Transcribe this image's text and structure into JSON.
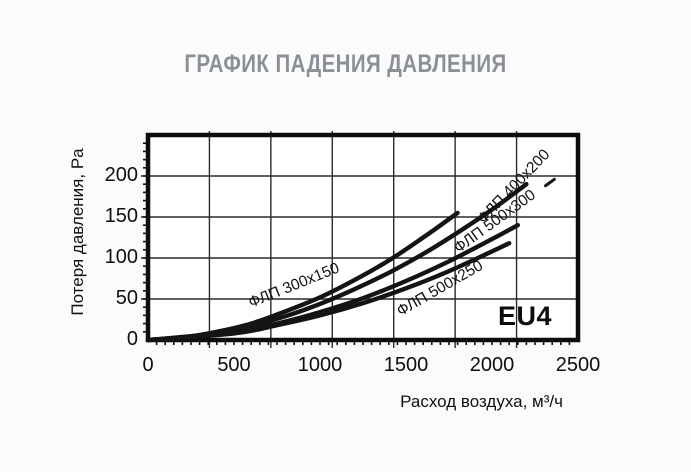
{
  "chart_data": {
    "type": "line",
    "title": "ГРАФИК ПАДЕНИЯ ДАВЛЕНИЯ",
    "xlabel": "Расход воздуха, м³/ч",
    "ylabel": "Потеря давления, Pa",
    "xlim": [
      0,
      2500
    ],
    "ylim": [
      0,
      250
    ],
    "x_ticks": [
      0,
      500,
      1000,
      1500,
      2000,
      2500
    ],
    "y_ticks": [
      0,
      50,
      100,
      150,
      200
    ],
    "x_minor_step": 50,
    "y_minor_step": 10,
    "x_grid_divisions": 7,
    "grid": "on",
    "legend": "labels-on-curves",
    "annotation": "EU4",
    "series": [
      {
        "name": "ФЛП 300x150",
        "x": [
          0,
          200,
          400,
          600,
          800,
          1000,
          1200,
          1400,
          1600,
          1800
        ],
        "y": [
          0,
          3,
          10,
          20,
          35,
          52,
          73,
          97,
          125,
          155
        ]
      },
      {
        "name": "ФЛП 400x200",
        "x": [
          0,
          400,
          600,
          800,
          1000,
          1200,
          1400,
          1600,
          1800,
          2000,
          2200
        ],
        "y": [
          0,
          8,
          17,
          29,
          44,
          62,
          82,
          105,
          131,
          159,
          190
        ]
      },
      {
        "name": "ФЛП 500x300",
        "x": [
          0,
          500,
          750,
          1000,
          1250,
          1500,
          1750,
          2000,
          2150
        ],
        "y": [
          0,
          9,
          20,
          34,
          51,
          72,
          96,
          123,
          140
        ]
      },
      {
        "name": "ФЛП 500x250",
        "x": [
          0,
          500,
          750,
          1000,
          1250,
          1500,
          1750,
          2000,
          2100
        ],
        "y": [
          0,
          8,
          18,
          30,
          45,
          63,
          84,
          108,
          118
        ]
      }
    ]
  }
}
